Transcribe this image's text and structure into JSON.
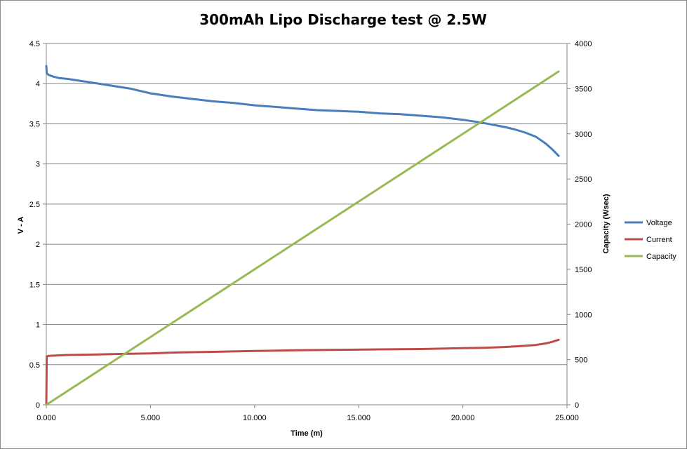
{
  "chart_data": {
    "type": "line",
    "title": "300mAh Lipo Discharge test @ 2.5W",
    "xlabel": "Time (m)",
    "ylabel": "V - A",
    "y2label": "Capacity (Wsec)",
    "xlim": [
      0,
      25
    ],
    "ylim": [
      0,
      4.5
    ],
    "y2lim": [
      0,
      4000
    ],
    "x_ticks": [
      "0.000",
      "5.000",
      "10.000",
      "15.000",
      "20.000",
      "25.000"
    ],
    "y_ticks": [
      "0",
      "0.5",
      "1",
      "1.5",
      "2",
      "2.5",
      "3",
      "3.5",
      "4",
      "4.5"
    ],
    "y2_ticks": [
      "0",
      "500",
      "1000",
      "1500",
      "2000",
      "2500",
      "3000",
      "3500",
      "4000"
    ],
    "grid": true,
    "legend_position": "right",
    "series": [
      {
        "name": "Voltage",
        "axis": "left",
        "color": "#4a7ebb",
        "x": [
          0,
          0.02,
          0.1,
          0.3,
          0.6,
          1,
          2,
          3,
          4,
          5,
          6,
          7,
          8,
          9,
          10,
          11,
          12,
          13,
          14,
          15,
          16,
          17,
          18,
          19,
          20,
          21,
          22,
          22.5,
          23,
          23.5,
          24,
          24.3,
          24.6
        ],
        "y": [
          4.22,
          4.13,
          4.11,
          4.09,
          4.07,
          4.06,
          4.02,
          3.98,
          3.94,
          3.88,
          3.84,
          3.81,
          3.78,
          3.76,
          3.73,
          3.71,
          3.69,
          3.67,
          3.66,
          3.65,
          3.63,
          3.62,
          3.6,
          3.58,
          3.55,
          3.51,
          3.46,
          3.43,
          3.39,
          3.34,
          3.25,
          3.18,
          3.1
        ]
      },
      {
        "name": "Current",
        "axis": "left",
        "color": "#be4b48",
        "x": [
          0,
          0.02,
          0.1,
          1,
          2,
          3,
          4,
          5,
          6,
          8,
          10,
          12,
          14,
          16,
          18,
          20,
          21,
          22,
          23,
          23.5,
          24,
          24.3,
          24.6
        ],
        "y": [
          0,
          0.6,
          0.61,
          0.62,
          0.625,
          0.63,
          0.635,
          0.64,
          0.65,
          0.66,
          0.67,
          0.68,
          0.685,
          0.69,
          0.695,
          0.705,
          0.71,
          0.72,
          0.735,
          0.745,
          0.765,
          0.785,
          0.81
        ]
      },
      {
        "name": "Capacity",
        "axis": "right",
        "color": "#98b954",
        "x": [
          0,
          24.6
        ],
        "y": [
          0,
          3690
        ]
      }
    ]
  }
}
